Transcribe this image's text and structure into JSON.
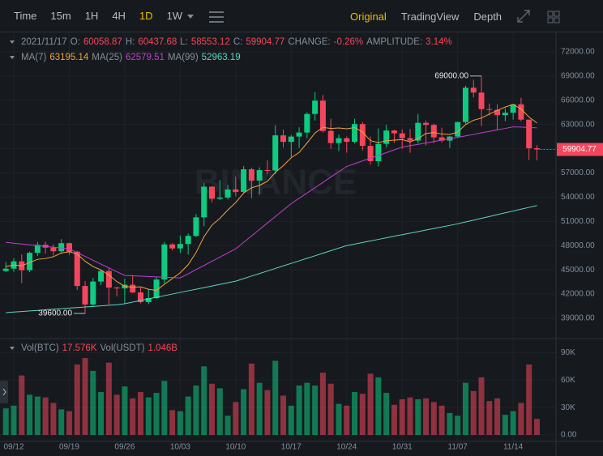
{
  "toolbar": {
    "intervals": [
      "Time",
      "15m",
      "1H",
      "4H",
      "1D",
      "1W"
    ],
    "active_interval": "1D",
    "views": [
      "Original",
      "TradingView",
      "Depth"
    ],
    "active_view": "Original"
  },
  "watermark": "BINANCE",
  "legend": {
    "date": "2021/11/17",
    "open_label": "O:",
    "high_label": "H:",
    "low_label": "L:",
    "close_label": "C:",
    "change": {
      "label": "CHANGE:",
      "value": -0.26,
      "value_label": "-0.26%"
    },
    "amplitude": {
      "label": "AMPLITUDE:",
      "value": 3.14,
      "value_label": "3.14%"
    },
    "vol_usdt": {
      "name": "Vol(USDT)",
      "value": 1046000000,
      "value_label": "1.046B"
    }
  },
  "chart_data": {
    "type": "candlestick",
    "grid": true,
    "up_color": "#0ecb81",
    "down_color": "#f6465d",
    "categories": [
      null,
      "09/12",
      null,
      null,
      null,
      null,
      null,
      null,
      "09/19",
      null,
      null,
      null,
      null,
      null,
      null,
      "09/26",
      null,
      null,
      null,
      null,
      null,
      null,
      "10/03",
      null,
      null,
      null,
      null,
      null,
      null,
      "10/10",
      null,
      null,
      null,
      null,
      null,
      null,
      "10/17",
      null,
      null,
      null,
      null,
      null,
      null,
      "10/24",
      null,
      null,
      null,
      null,
      null,
      null,
      "10/31",
      null,
      null,
      null,
      null,
      null,
      null,
      "11/07",
      null,
      null,
      null,
      null,
      null,
      null,
      "11/14",
      null,
      null,
      null
    ],
    "open": [
      44850,
      45150,
      46050,
      44950,
      47100,
      48100,
      47750,
      47300,
      48300,
      47250,
      43000,
      40700,
      43550,
      44850,
      42800,
      42700,
      43150,
      42200,
      41000,
      41500,
      43800,
      48150,
      47650,
      48200,
      49200,
      51500,
      55300,
      53800,
      53950,
      54950,
      54650,
      57450,
      56050,
      57350,
      57300,
      61650,
      60850,
      61500,
      62000,
      64300,
      65950,
      62200,
      60700,
      61300,
      60850,
      63050,
      60350,
      58450,
      60600,
      62250,
      61900,
      61300,
      61000,
      63200,
      62950,
      61400,
      61000,
      61500,
      63300,
      67550,
      66950,
      64900,
      64800,
      64150,
      64450,
      65500,
      63600,
      60058.87
    ],
    "high": [
      45950,
      46450,
      46900,
      47250,
      48450,
      48500,
      48150,
      48800,
      48350,
      47350,
      43600,
      44000,
      44950,
      45150,
      42950,
      43900,
      44350,
      42800,
      42600,
      44100,
      48450,
      48300,
      49250,
      49500,
      51900,
      55750,
      55350,
      56100,
      55500,
      56550,
      57850,
      57650,
      57700,
      58550,
      62900,
      62350,
      61700,
      62650,
      64500,
      67000,
      66650,
      63700,
      61750,
      61500,
      63700,
      63300,
      61500,
      62500,
      62950,
      62350,
      62400,
      62450,
      64300,
      63500,
      63100,
      62600,
      61550,
      63300,
      67800,
      68550,
      69000,
      65600,
      65500,
      65000,
      65550,
      66300,
      63600,
      60437.68
    ],
    "low": [
      44700,
      44750,
      43350,
      44700,
      46700,
      47000,
      46750,
      47050,
      46850,
      42500,
      39600,
      40550,
      43100,
      40700,
      41700,
      40800,
      42100,
      40850,
      40750,
      41400,
      43300,
      47400,
      47100,
      46900,
      49050,
      50400,
      53350,
      53650,
      53700,
      54100,
      54400,
      53850,
      54300,
      56850,
      56850,
      60150,
      58950,
      60100,
      61300,
      63500,
      62000,
      60000,
      59700,
      59500,
      60650,
      59800,
      58000,
      57800,
      60150,
      60700,
      60000,
      59500,
      60650,
      60400,
      60700,
      60750,
      60100,
      61350,
      63100,
      66350,
      62800,
      64100,
      62300,
      63400,
      63600,
      63400,
      58600,
      58553.12
    ],
    "close": [
      45150,
      46050,
      44950,
      47100,
      48100,
      47750,
      47300,
      48300,
      47250,
      43000,
      40700,
      43550,
      44850,
      42800,
      42700,
      43150,
      42200,
      41000,
      41500,
      43800,
      48150,
      47650,
      48200,
      49200,
      51500,
      55300,
      53800,
      53950,
      54950,
      54650,
      57450,
      56050,
      57350,
      57300,
      61650,
      60850,
      61500,
      62000,
      64300,
      65950,
      62200,
      60700,
      61300,
      60850,
      63050,
      60350,
      58450,
      60600,
      62250,
      61900,
      61300,
      61000,
      63200,
      62950,
      61400,
      61000,
      61500,
      63300,
      67550,
      66950,
      64900,
      64800,
      64150,
      64450,
      65500,
      63600,
      60050,
      59904.77
    ],
    "series": [
      {
        "name": "MA(7)",
        "color": "#f0a43a",
        "values": [
          45400,
          45600,
          45500,
          45900,
          46300,
          46400,
          46630,
          47080,
          47250,
          46970,
          46060,
          45410,
          44990,
          44350,
          43550,
          42960,
          42850,
          42890,
          42600,
          42450,
          43210,
          43920,
          44640,
          45640,
          47140,
          49110,
          50540,
          51370,
          52410,
          53340,
          54510,
          55160,
          55460,
          55960,
          57060,
          57900,
          58880,
          59530,
          60710,
          61940,
          62640,
          62500,
          62560,
          62470,
          62620,
          62060,
          60990,
          60760,
          60980,
          61060,
          61130,
          60840,
          61240,
          61890,
          62000,
          61820,
          61760,
          62050,
          62990,
          63520,
          63800,
          64290,
          64740,
          65160,
          65470,
          64910,
          63920,
          63195.14
        ]
      },
      {
        "name": "MA(25)",
        "color": "#c13fd0",
        "values": [
          48400,
          48300,
          48200,
          48100,
          48000,
          47900,
          47800,
          47700,
          47600,
          47130,
          46660,
          46190,
          45710,
          45240,
          44770,
          44300,
          44260,
          44210,
          44170,
          44130,
          44090,
          44040,
          44000,
          44510,
          45030,
          45540,
          46060,
          46570,
          47090,
          47600,
          48400,
          49200,
          50000,
          50800,
          51600,
          52400,
          53200,
          53860,
          54510,
          55170,
          55830,
          56490,
          57140,
          57800,
          58140,
          58490,
          58830,
          59170,
          59510,
          59860,
          60200,
          60370,
          60540,
          60710,
          60890,
          61060,
          61230,
          61400,
          61590,
          61770,
          61960,
          62140,
          62330,
          62510,
          62700,
          62680,
          62630,
          62579.51
        ]
      },
      {
        "name": "MA(99)",
        "color": "#5fd3c6",
        "values": [
          39700,
          39770,
          39840,
          39910,
          39980,
          40050,
          40120,
          40190,
          40260,
          40330,
          40400,
          40470,
          40540,
          40610,
          40680,
          40800,
          41000,
          41200,
          41400,
          41600,
          41800,
          42000,
          42200,
          42400,
          42600,
          42800,
          43000,
          43200,
          43400,
          43600,
          43910,
          44230,
          44540,
          44860,
          45170,
          45490,
          45800,
          46110,
          46430,
          46740,
          47060,
          47370,
          47690,
          48000,
          48190,
          48390,
          48580,
          48770,
          48960,
          49160,
          49350,
          49540,
          49730,
          49930,
          50120,
          50310,
          50500,
          50700,
          50930,
          51150,
          51380,
          51600,
          51830,
          52060,
          52280,
          52510,
          52730,
          52963.19
        ]
      }
    ],
    "ylim": [
      36490,
      74400
    ],
    "yticks": [
      {
        "value": 72000,
        "label": "72000.00"
      },
      {
        "value": 69000,
        "label": "69000.00"
      },
      {
        "value": 66000,
        "label": "66000.00"
      },
      {
        "value": 63000,
        "label": "63000.00"
      },
      {
        "value": 60000,
        "label": "60000.00"
      },
      {
        "value": 57000,
        "label": "57000.00"
      },
      {
        "value": 54000,
        "label": "54000.00"
      },
      {
        "value": 51000,
        "label": "51000.00"
      },
      {
        "value": 48000,
        "label": "48000.00"
      },
      {
        "value": 45000,
        "label": "45000.00"
      },
      {
        "value": 42000,
        "label": "42000.00"
      },
      {
        "value": 39000,
        "label": "39000.00"
      }
    ],
    "annotations": [
      {
        "index": 60,
        "field": "high",
        "label": "69000.00"
      },
      {
        "index": 10,
        "field": "low",
        "label": "39600.00"
      }
    ],
    "volume": {
      "name": "Vol(BTC)",
      "value_label": "17.576K",
      "values": [
        29000,
        32000,
        65000,
        44000,
        42000,
        41000,
        35000,
        28000,
        26000,
        77000,
        84000,
        70000,
        47000,
        79000,
        44000,
        53000,
        40000,
        47000,
        41000,
        46000,
        59000,
        27000,
        26000,
        42000,
        54000,
        75000,
        56000,
        51000,
        21000,
        36000,
        50000,
        78000,
        57000,
        49000,
        81000,
        43000,
        32000,
        54000,
        57000,
        54000,
        68000,
        56000,
        34000,
        32000,
        47000,
        45000,
        67000,
        63000,
        46000,
        33000,
        39000,
        41000,
        39000,
        40000,
        36000,
        32000,
        24000,
        21000,
        57000,
        48000,
        63000,
        37000,
        40000,
        22000,
        26000,
        35000,
        77000,
        17576
      ],
      "ylim": [
        0,
        96500
      ],
      "yticks": [
        {
          "value": 90000,
          "label": "90K"
        },
        {
          "value": 60000,
          "label": "60K"
        },
        {
          "value": 30000,
          "label": "30K"
        },
        {
          "value": 0,
          "label": "0.00"
        }
      ]
    }
  }
}
